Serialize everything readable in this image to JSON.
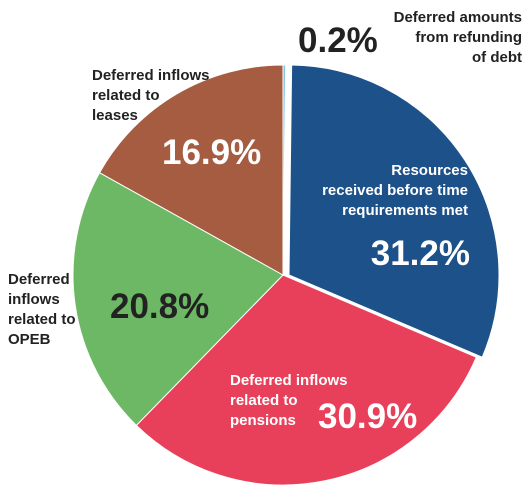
{
  "chart_data": {
    "type": "pie",
    "categories": [
      "Deferred amounts\nfrom refunding\nof debt",
      "Resources\nreceived before time\nrequirements met",
      "Deferred inflows\nrelated to\npensions",
      "Deferred\ninflows\nrelated to\nOPEB",
      "Deferred inflows\nrelated to\nleases"
    ],
    "values": [
      0.2,
      31.2,
      30.9,
      20.8,
      16.9
    ],
    "value_labels": [
      "0.2%",
      "31.2%",
      "30.9%",
      "20.8%",
      "16.9%"
    ],
    "colors": [
      "#7ec8e3",
      "#1d5189",
      "#e8405a",
      "#6db865",
      "#a55c40"
    ]
  }
}
